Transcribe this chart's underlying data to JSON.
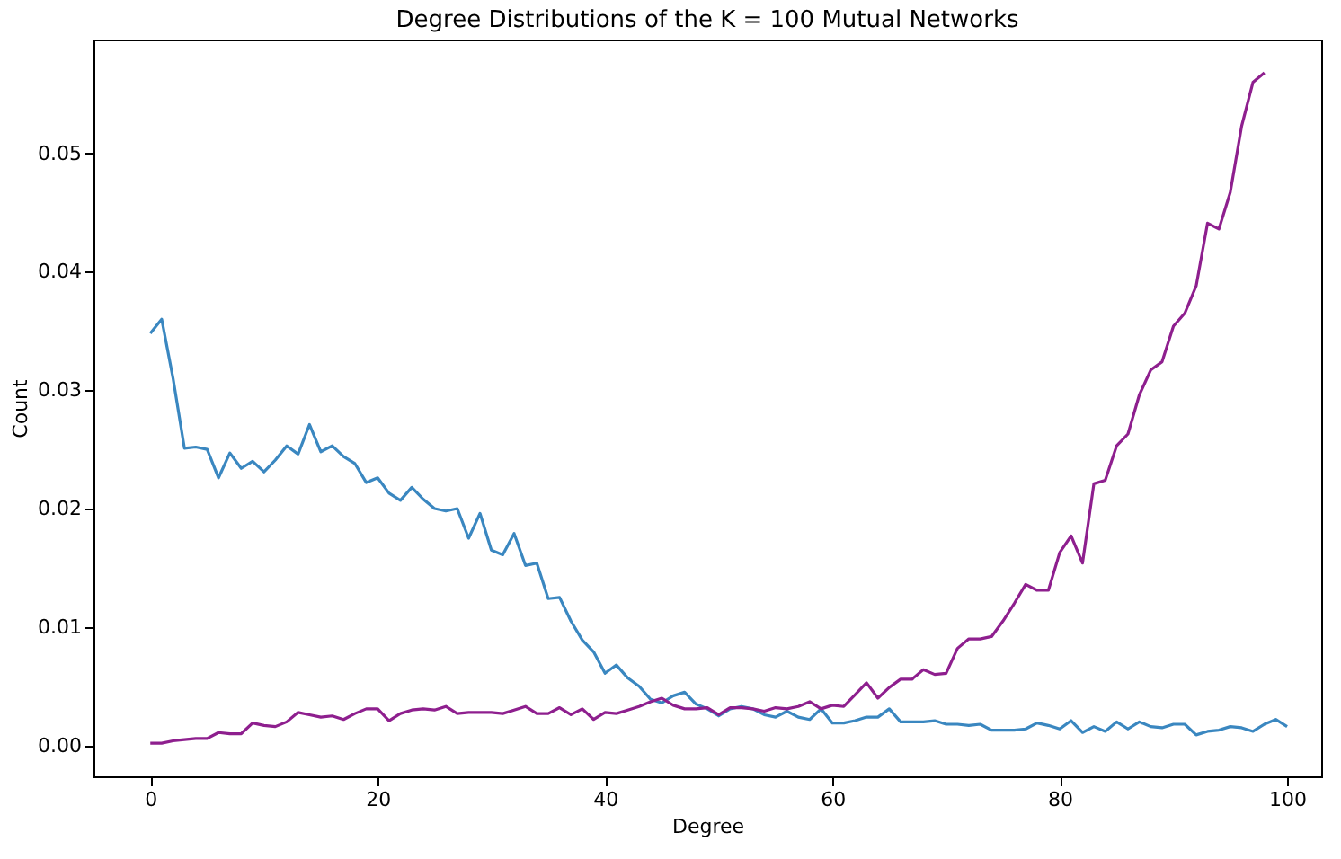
{
  "chart_data": {
    "type": "line",
    "title": "Degree Distributions of the K = 100 Mutual Networks",
    "xlabel": "Degree",
    "ylabel": "Count",
    "xlim": [
      -5,
      103
    ],
    "ylim": [
      -0.0026,
      0.0596
    ],
    "xticks": [
      0,
      20,
      40,
      60,
      80,
      100
    ],
    "yticks": [
      {
        "value": 0,
        "label": "0.00"
      },
      {
        "value": 0.01,
        "label": "0.01"
      },
      {
        "value": 0.02,
        "label": "0.02"
      },
      {
        "value": 0.03,
        "label": "0.03"
      },
      {
        "value": 0.04,
        "label": "0.04"
      },
      {
        "value": 0.05,
        "label": "0.05"
      }
    ],
    "grid": false,
    "series": [
      {
        "color": "#3a87c0",
        "x": [
          0,
          1,
          2,
          3,
          4,
          5,
          6,
          7,
          8,
          9,
          10,
          11,
          12,
          13,
          14,
          15,
          16,
          17,
          18,
          19,
          20,
          21,
          22,
          23,
          24,
          25,
          26,
          27,
          28,
          29,
          30,
          31,
          32,
          33,
          34,
          35,
          36,
          37,
          38,
          39,
          40,
          41,
          42,
          43,
          44,
          45,
          46,
          47,
          48,
          49,
          50,
          51,
          52,
          53,
          54,
          55,
          56,
          57,
          58,
          59,
          60,
          61,
          62,
          63,
          64,
          65,
          66,
          67,
          68,
          69,
          70,
          71,
          72,
          73,
          74,
          75,
          76,
          77,
          78,
          79,
          80,
          81,
          82,
          83,
          84,
          85,
          86,
          87,
          88,
          89,
          90,
          91,
          92,
          93,
          94,
          95,
          96,
          97,
          98,
          99,
          100
        ],
        "values": [
          0.0348,
          0.036,
          0.031,
          0.0251,
          0.0252,
          0.025,
          0.0226,
          0.0247,
          0.0234,
          0.024,
          0.0231,
          0.0241,
          0.0253,
          0.0246,
          0.0271,
          0.0248,
          0.0253,
          0.0244,
          0.0238,
          0.0222,
          0.0226,
          0.0213,
          0.0207,
          0.0218,
          0.0208,
          0.02,
          0.0198,
          0.02,
          0.0175,
          0.0196,
          0.0165,
          0.0161,
          0.0179,
          0.0152,
          0.0154,
          0.0124,
          0.0125,
          0.0105,
          0.0089,
          0.0079,
          0.0061,
          0.0068,
          0.0057,
          0.005,
          0.0039,
          0.0036,
          0.0042,
          0.0045,
          0.0035,
          0.0031,
          0.0025,
          0.0031,
          0.0033,
          0.0031,
          0.0026,
          0.0024,
          0.0029,
          0.0024,
          0.0022,
          0.0031,
          0.0019,
          0.0019,
          0.0021,
          0.0024,
          0.0024,
          0.0031,
          0.002,
          0.002,
          0.002,
          0.0021,
          0.0018,
          0.0018,
          0.0017,
          0.0018,
          0.0013,
          0.0013,
          0.0013,
          0.0014,
          0.0019,
          0.0017,
          0.0014,
          0.0021,
          0.0011,
          0.0016,
          0.0012,
          0.002,
          0.0014,
          0.002,
          0.0016,
          0.0015,
          0.0018,
          0.0018,
          0.0009,
          0.0012,
          0.0013,
          0.0016,
          0.0015,
          0.0012,
          0.0018,
          0.0022,
          0.0016
        ]
      },
      {
        "color": "#8e1f8e",
        "x": [
          0,
          1,
          2,
          3,
          4,
          5,
          6,
          7,
          8,
          9,
          10,
          11,
          12,
          13,
          14,
          15,
          16,
          17,
          18,
          19,
          20,
          21,
          22,
          23,
          24,
          25,
          26,
          27,
          28,
          29,
          30,
          31,
          32,
          33,
          34,
          35,
          36,
          37,
          38,
          39,
          40,
          41,
          42,
          43,
          44,
          45,
          46,
          47,
          48,
          49,
          50,
          51,
          52,
          53,
          54,
          55,
          56,
          57,
          58,
          59,
          60,
          61,
          62,
          63,
          64,
          65,
          66,
          67,
          68,
          69,
          70,
          71,
          72,
          73,
          74,
          75,
          76,
          77,
          78,
          79,
          80,
          81,
          82,
          83,
          84,
          85,
          86,
          87,
          88,
          89,
          90,
          91,
          92,
          93,
          94,
          95,
          96,
          97,
          98
        ],
        "values": [
          0.0002,
          0.0002,
          0.0004,
          0.0005,
          0.0006,
          0.0006,
          0.0011,
          0.001,
          0.001,
          0.0019,
          0.0017,
          0.0016,
          0.002,
          0.0028,
          0.0026,
          0.0024,
          0.0025,
          0.0022,
          0.0027,
          0.0031,
          0.0031,
          0.0021,
          0.0027,
          0.003,
          0.0031,
          0.003,
          0.0033,
          0.0027,
          0.0028,
          0.0028,
          0.0028,
          0.0027,
          0.003,
          0.0033,
          0.0027,
          0.0027,
          0.0032,
          0.0026,
          0.0031,
          0.0022,
          0.0028,
          0.0027,
          0.003,
          0.0033,
          0.0037,
          0.004,
          0.0034,
          0.0031,
          0.0031,
          0.0032,
          0.0026,
          0.0032,
          0.0032,
          0.0031,
          0.0029,
          0.0032,
          0.0031,
          0.0033,
          0.0037,
          0.0031,
          0.0034,
          0.0033,
          0.0043,
          0.0053,
          0.004,
          0.0049,
          0.0056,
          0.0056,
          0.0064,
          0.006,
          0.0061,
          0.0082,
          0.009,
          0.009,
          0.0092,
          0.0105,
          0.012,
          0.0136,
          0.0131,
          0.0131,
          0.0163,
          0.0177,
          0.0154,
          0.0221,
          0.0224,
          0.0253,
          0.0263,
          0.0296,
          0.0317,
          0.0324,
          0.0354,
          0.0365,
          0.0388,
          0.0441,
          0.0436,
          0.0467,
          0.0523,
          0.056,
          0.0568
        ]
      }
    ]
  }
}
